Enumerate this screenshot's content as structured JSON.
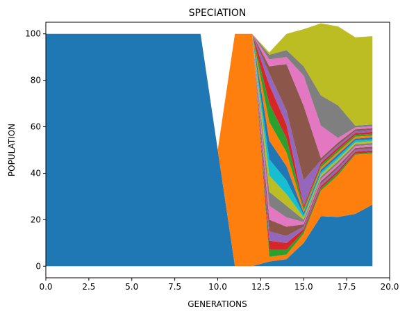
{
  "chart_data": {
    "type": "area",
    "stacked": true,
    "title": "SPECIATION",
    "xlabel": "GENERATIONS",
    "ylabel": "POPULATION",
    "xlim": [
      0,
      20
    ],
    "ylim": [
      -5,
      105
    ],
    "x_ticks": [
      0,
      2.5,
      5,
      7.5,
      10,
      12.5,
      15,
      17.5,
      20
    ],
    "x_tick_labels": [
      "0.0",
      "2.5",
      "5.0",
      "7.5",
      "10.0",
      "12.5",
      "15.0",
      "17.5",
      "20.0"
    ],
    "y_ticks": [
      0,
      20,
      40,
      60,
      80,
      100
    ],
    "y_tick_labels": [
      "0",
      "20",
      "40",
      "60",
      "80",
      "100"
    ],
    "grid": false,
    "legend": "none",
    "x": [
      0,
      1,
      2,
      3,
      4,
      5,
      6,
      7,
      8,
      9,
      10,
      11,
      12,
      13,
      14,
      15,
      16,
      17,
      18,
      19
    ],
    "series": [
      {
        "color": "#1f77b4",
        "values": [
          100,
          100,
          100,
          100,
          100,
          100,
          100,
          100,
          100,
          100,
          50,
          0,
          0,
          2,
          3,
          10,
          21.5,
          21.2,
          22.5,
          26.5
        ]
      },
      {
        "color": "#ff7f0e",
        "values": [
          0,
          0,
          0,
          0,
          0,
          0,
          0,
          0,
          0,
          0,
          0,
          100,
          100,
          2,
          2,
          4,
          11,
          18,
          25.5,
          22
        ]
      },
      {
        "color": "#2ca02c",
        "values": [
          0,
          0,
          0,
          0,
          0,
          0,
          0,
          0,
          0,
          0,
          0,
          0,
          0,
          3,
          2,
          1,
          1,
          1,
          0.5,
          0.5
        ]
      },
      {
        "color": "#d62728",
        "values": [
          0,
          0,
          0,
          0,
          0,
          0,
          0,
          0,
          0,
          0,
          0,
          0,
          0,
          4,
          3,
          1,
          1,
          1,
          0.8,
          0.8
        ]
      },
      {
        "color": "#9467bd",
        "values": [
          0,
          0,
          0,
          0,
          0,
          0,
          0,
          0,
          0,
          0,
          0,
          0,
          0,
          4,
          3,
          1,
          1,
          1,
          0.8,
          0.8
        ]
      },
      {
        "color": "#8c564b",
        "values": [
          0,
          0,
          0,
          0,
          0,
          0,
          0,
          0,
          0,
          0,
          0,
          0,
          0,
          5,
          4,
          1,
          1,
          1,
          0.8,
          0.8
        ]
      },
      {
        "color": "#e377c2",
        "values": [
          0,
          0,
          0,
          0,
          0,
          0,
          0,
          0,
          0,
          0,
          0,
          0,
          0,
          6,
          4,
          1,
          1,
          1,
          0.8,
          0.8
        ]
      },
      {
        "color": "#7f7f7f",
        "values": [
          0,
          0,
          0,
          0,
          0,
          0,
          0,
          0,
          0,
          0,
          0,
          0,
          0,
          6,
          5,
          1,
          1,
          1,
          0.8,
          0.8
        ]
      },
      {
        "color": "#bcbd22",
        "values": [
          0,
          0,
          0,
          0,
          0,
          0,
          0,
          0,
          0,
          0,
          0,
          0,
          0,
          7,
          5,
          1,
          1,
          1,
          0.8,
          0.8
        ]
      },
      {
        "color": "#17becf",
        "values": [
          0,
          0,
          0,
          0,
          0,
          0,
          0,
          0,
          0,
          0,
          0,
          0,
          0,
          7,
          6,
          1,
          1,
          1,
          0.8,
          0.8
        ]
      },
      {
        "color": "#1f77b4",
        "values": [
          0,
          0,
          0,
          0,
          0,
          0,
          0,
          0,
          0,
          0,
          0,
          0,
          0,
          8,
          6,
          1,
          1,
          1,
          0.8,
          0.8
        ]
      },
      {
        "color": "#ff7f0e",
        "values": [
          0,
          0,
          0,
          0,
          0,
          0,
          0,
          0,
          0,
          0,
          0,
          0,
          0,
          8,
          6,
          1,
          1,
          1,
          0.8,
          0.8
        ]
      },
      {
        "color": "#2ca02c",
        "values": [
          0,
          0,
          0,
          0,
          0,
          0,
          0,
          0,
          0,
          0,
          0,
          0,
          0,
          8,
          6,
          1,
          1,
          1,
          0.8,
          0.8
        ]
      },
      {
        "color": "#d62728",
        "values": [
          0,
          0,
          0,
          0,
          0,
          0,
          0,
          0,
          0,
          0,
          0,
          0,
          0,
          8,
          6,
          1,
          1,
          1,
          0.8,
          0.8
        ]
      },
      {
        "color": "#9467bd",
        "values": [
          0,
          0,
          0,
          0,
          0,
          0,
          0,
          0,
          0,
          0,
          0,
          0,
          0,
          5,
          6,
          11,
          1,
          1,
          0.8,
          0.8
        ]
      },
      {
        "color": "#8c564b",
        "values": [
          0,
          0,
          0,
          0,
          0,
          0,
          0,
          0,
          0,
          0,
          0,
          0,
          0,
          3,
          20,
          32,
          1,
          1,
          0.8,
          0.8
        ]
      },
      {
        "color": "#e377c2",
        "values": [
          0,
          0,
          0,
          0,
          0,
          0,
          0,
          0,
          0,
          0,
          0,
          0,
          0,
          3,
          3,
          13,
          14,
          2,
          0.8,
          0.8
        ]
      },
      {
        "color": "#7f7f7f",
        "values": [
          0,
          0,
          0,
          0,
          0,
          0,
          0,
          0,
          0,
          0,
          0,
          0,
          0,
          2,
          3,
          4,
          13,
          14,
          0.8,
          0.8
        ]
      },
      {
        "color": "#bcbd22",
        "values": [
          0,
          0,
          0,
          0,
          0,
          0,
          0,
          0,
          0,
          0,
          0,
          0,
          0,
          1,
          7,
          16,
          31,
          34,
          38,
          38
        ]
      }
    ]
  }
}
